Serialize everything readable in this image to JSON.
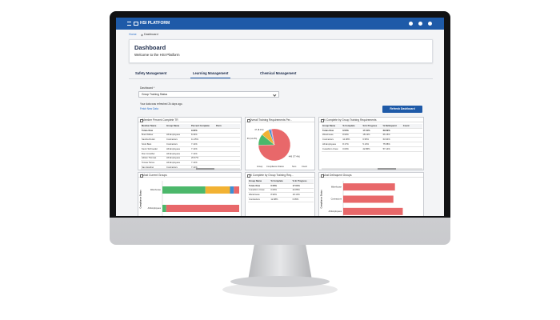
{
  "app": {
    "brand": "HSI PLATFORM"
  },
  "breadcrumb": [
    "Home",
    "Dashboard"
  ],
  "header": {
    "title": "Dashboard",
    "subtitle": "Welcome to the HSI Platform"
  },
  "tabs": [
    "Safety Management",
    "Learning Management",
    "Chemical Management"
  ],
  "active_tab": 1,
  "filter": {
    "label": "Dashboard *",
    "value": "Group Training Status"
  },
  "refresh": {
    "note": "Your data was refreshed 2k days ago.",
    "link": "Fetch New Data",
    "button": "Refresh Dashboard"
  },
  "widgets": [
    {
      "title": "Member Percent Complete TR",
      "table": {
        "columns": [
          "Member Name",
          "Group Name",
          "Percent Complete",
          "Perm"
        ],
        "rows": [
          [
            "Totals Row",
            null,
            "9.90%",
            null
          ],
          [
            "Brett Willow",
            "All Employees",
            "8.33%",
            null
          ],
          [
            "Sandra Ruder",
            "Contractors",
            "11.45%",
            null
          ],
          [
            "Scott Best",
            "Contractors",
            "7.14%",
            null
          ],
          [
            "Kevin Schroeder",
            "All Employees",
            "7.14%",
            null
          ],
          [
            "Ron Crowther",
            "All Employees",
            "7.14%",
            null
          ],
          [
            "Adrian Thomas",
            "All Employees",
            "26.67%",
            null
          ],
          [
            "Tomas Torres",
            "All Employees",
            "7.14%",
            null
          ],
          [
            "Sam Espling",
            "Contractors",
            "7.14%",
            null
          ]
        ]
      }
    },
    {
      "title": "Overall Training Requirements Per...",
      "chart_data": {
        "type": "pie",
        "values": [
          449,
          66,
          47,
          13,
          5
        ],
        "value_labels": [
          "449 (77.4%)",
          "66 (11.4%)",
          "47 (8.1%)",
          null,
          null
        ],
        "colors": [
          "#e8686a",
          "#4cb86b",
          "#f2b233",
          "#3b8fd6",
          "#9b6fc4"
        ]
      },
      "controls": [
        "Group",
        "Compliance Status",
        "Sum",
        "Count"
      ]
    },
    {
      "title": "% Complete by Group Training Requirements",
      "table": {
        "columns": [
          "Group Name",
          "% Complete",
          "% In Progress",
          "% Delinquent",
          "Count"
        ],
        "rows": [
          [
            "Totals Row",
            "6.50%",
            "17.01%",
            "69.69%",
            null
          ],
          [
            "Warehouse",
            "8.90%",
            "18.13%",
            "66.15%",
            null
          ],
          [
            "Contractors",
            "12.08%",
            "6.95%",
            "63.94%",
            null
          ],
          [
            "All Employees",
            "8.17%",
            "5.13%",
            "75.58%",
            null
          ],
          [
            "Cuneiform Crew",
            "0.00%",
            "42.86%",
            "57.14%",
            null
          ]
        ]
      }
    },
    {
      "title": "Most Current Groups",
      "chart_data": {
        "type": "bar",
        "orientation": "horizontal",
        "stacked": true,
        "y_label": "Compliance Status",
        "categories": [
          "Warehouse",
          "All Employees"
        ],
        "xlim": [
          0,
          100
        ],
        "series": [
          {
            "color": "#4cb86b",
            "values": [
              56,
              5
            ]
          },
          {
            "color": "#f2b233",
            "values": [
              32,
              0
            ]
          },
          {
            "color": "#3b8fd6",
            "values": [
              5,
              0
            ]
          },
          {
            "color": "#e8686a",
            "values": [
              7,
              95
            ]
          }
        ]
      }
    },
    {
      "title": "% Complete by Group Training Req...",
      "table": {
        "columns": [
          "Group Name",
          "% Complete",
          "% In Progress"
        ],
        "rows": [
          [
            "Totals Row",
            "6.50%",
            "17.01%"
          ],
          [
            "Cuneiform Crew",
            "0.00%",
            "42.86%"
          ],
          [
            "Warehouse",
            "8.90%",
            "18.13%"
          ],
          [
            "Contractors",
            "12.08%",
            "6.95%"
          ]
        ]
      }
    },
    {
      "title": "Most Delinquent Groups",
      "chart_data": {
        "type": "bar",
        "orientation": "horizontal",
        "stacked": true,
        "y_label": "Compliance Status",
        "categories": [
          "Warehouse",
          "Contractors",
          "All Employees"
        ],
        "xlim": [
          0,
          100
        ],
        "series": [
          {
            "color": "#e8686a",
            "values": [
              66,
              64,
              76
            ]
          }
        ]
      }
    }
  ]
}
